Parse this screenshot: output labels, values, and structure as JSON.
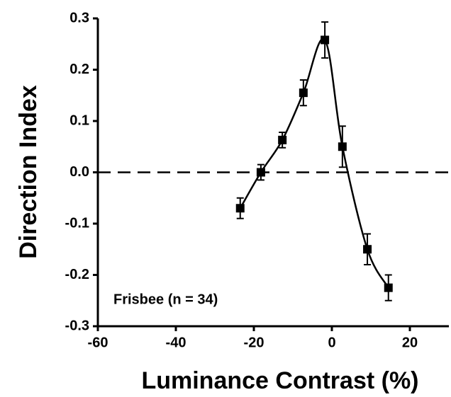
{
  "chart_data": {
    "type": "line",
    "x_label": "Luminance Contrast (%)",
    "y_label": "Direction Index",
    "annotation": "Frisbee (n = 34)",
    "x": [
      -23.5,
      -18.2,
      -12.7,
      -7.3,
      -1.8,
      2.7,
      9.1,
      14.5
    ],
    "series": [
      {
        "name": "Frisbee",
        "color": "#000000",
        "values": [
          -0.07,
          0.0,
          0.063,
          0.155,
          0.258,
          0.05,
          -0.15,
          -0.225
        ],
        "errors": [
          0.02,
          0.015,
          0.015,
          0.025,
          0.035,
          0.04,
          0.03,
          0.025
        ]
      }
    ],
    "xlim": [
      -60,
      30
    ],
    "xticks": [
      -60,
      -40,
      -20,
      0,
      20
    ],
    "ylim": [
      -0.3,
      0.3
    ],
    "yticks": [
      -0.3,
      -0.2,
      -0.1,
      {
        "value": 0,
        "label": "0.0"
      },
      0.1,
      0.2,
      0.3
    ],
    "reference_line": 0
  }
}
